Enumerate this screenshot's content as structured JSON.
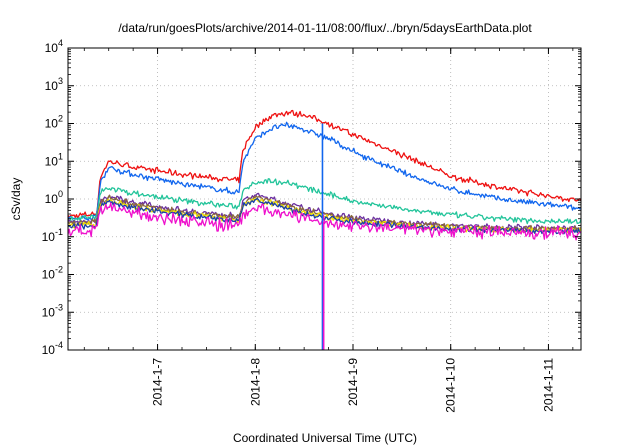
{
  "chart_data": {
    "type": "line",
    "title": "/data/run/goesPlots/archive/2014-01-11/08:00/flux/../bryn/5daysEarthData.plot",
    "xlabel": "Coordinated Universal Time (UTC)",
    "ylabel": "cSv/day",
    "y_scale": "log",
    "ylim": [
      0.0001,
      10000
    ],
    "xlim": [
      "2014-01-06 02:00",
      "2014-01-11 08:00"
    ],
    "grid": true,
    "legend": "none",
    "y_ticks": [
      {
        "base": "10",
        "exp": "-4",
        "value": 0.0001
      },
      {
        "base": "10",
        "exp": "-3",
        "value": 0.001
      },
      {
        "base": "10",
        "exp": "-2",
        "value": 0.01
      },
      {
        "base": "10",
        "exp": "-1",
        "value": 0.1
      },
      {
        "base": "10",
        "exp": "0",
        "value": 1
      },
      {
        "base": "10",
        "exp": "1",
        "value": 10
      },
      {
        "base": "10",
        "exp": "2",
        "value": 100
      },
      {
        "base": "10",
        "exp": "3",
        "value": 1000
      },
      {
        "base": "10",
        "exp": "4",
        "value": 10000
      }
    ],
    "x_ticks": [
      {
        "label": "2014-1-7",
        "value": "2014-01-07 00:00"
      },
      {
        "label": "2014-1-8",
        "value": "2014-01-08 00:00"
      },
      {
        "label": "2014-1-9",
        "value": "2014-01-09 00:00"
      },
      {
        "label": "2014-1-10",
        "value": "2014-01-10 00:00"
      },
      {
        "label": "2014-1-11",
        "value": "2014-01-11 00:00"
      }
    ],
    "series": [
      {
        "color": "#ee1111",
        "x": [
          "2014-01-06 02:00",
          "2014-01-06 09:00",
          "2014-01-06 10:00",
          "2014-01-06 12:00",
          "2014-01-06 18:00",
          "2014-01-07 06:00",
          "2014-01-07 18:00",
          "2014-01-07 20:00",
          "2014-01-07 21:00",
          "2014-01-08 00:00",
          "2014-01-08 04:00",
          "2014-01-08 08:00",
          "2014-01-08 12:00",
          "2014-01-08 18:00",
          "2014-01-09 00:00",
          "2014-01-09 12:00",
          "2014-01-10 00:00",
          "2014-01-10 12:00",
          "2014-01-11 00:00",
          "2014-01-11 08:00"
        ],
        "y": [
          0.35,
          0.4,
          4,
          10,
          7,
          4.5,
          3.2,
          3,
          20,
          80,
          160,
          200,
          170,
          100,
          50,
          15,
          4,
          2,
          1.2,
          0.9
        ]
      },
      {
        "color": "#1166ee",
        "x": [
          "2014-01-06 02:00",
          "2014-01-06 09:00",
          "2014-01-06 10:00",
          "2014-01-06 12:00",
          "2014-01-06 18:00",
          "2014-01-07 06:00",
          "2014-01-07 18:00",
          "2014-01-07 20:00",
          "2014-01-07 21:00",
          "2014-01-08 00:00",
          "2014-01-08 04:00",
          "2014-01-08 08:00",
          "2014-01-08 12:00",
          "2014-01-08 18:00",
          "2014-01-09 00:00",
          "2014-01-09 12:00",
          "2014-01-10 00:00",
          "2014-01-10 12:00",
          "2014-01-11 00:00",
          "2014-01-11 08:00"
        ],
        "y": [
          0.3,
          0.32,
          3,
          7,
          4.5,
          2.5,
          1.6,
          1.5,
          10,
          40,
          75,
          90,
          70,
          40,
          18,
          5,
          1.8,
          1,
          0.7,
          0.55
        ]
      },
      {
        "color": "#22c49a",
        "x": [
          "2014-01-06 02:00",
          "2014-01-06 09:00",
          "2014-01-06 10:00",
          "2014-01-06 12:00",
          "2014-01-06 18:00",
          "2014-01-07 06:00",
          "2014-01-07 18:00",
          "2014-01-07 20:00",
          "2014-01-07 21:00",
          "2014-01-08 00:00",
          "2014-01-08 04:00",
          "2014-01-08 08:00",
          "2014-01-08 12:00",
          "2014-01-08 18:00",
          "2014-01-09 00:00",
          "2014-01-09 12:00",
          "2014-01-10 00:00",
          "2014-01-10 12:00",
          "2014-01-11 00:00",
          "2014-01-11 08:00"
        ],
        "y": [
          0.3,
          0.32,
          1.5,
          2,
          1.4,
          0.9,
          0.65,
          0.6,
          1.8,
          2.8,
          3,
          2.8,
          2,
          1.3,
          0.9,
          0.55,
          0.38,
          0.3,
          0.26,
          0.25
        ]
      },
      {
        "color": "#6b2fa0",
        "x": [
          "2014-01-06 02:00",
          "2014-01-06 09:00",
          "2014-01-06 10:00",
          "2014-01-06 12:00",
          "2014-01-06 18:00",
          "2014-01-07 06:00",
          "2014-01-07 18:00",
          "2014-01-07 20:00",
          "2014-01-07 21:00",
          "2014-01-08 00:00",
          "2014-01-08 04:00",
          "2014-01-08 08:00",
          "2014-01-08 12:00",
          "2014-01-08 18:00",
          "2014-01-09 00:00",
          "2014-01-09 12:00",
          "2014-01-10 00:00",
          "2014-01-10 12:00",
          "2014-01-11 00:00",
          "2014-01-11 08:00"
        ],
        "y": [
          0.25,
          0.26,
          0.9,
          1.2,
          0.8,
          0.5,
          0.36,
          0.34,
          0.9,
          1.3,
          1.0,
          0.75,
          0.55,
          0.42,
          0.32,
          0.24,
          0.2,
          0.18,
          0.17,
          0.17
        ]
      },
      {
        "color": "#8a6a3c",
        "x": [
          "2014-01-06 02:00",
          "2014-01-06 09:00",
          "2014-01-06 10:00",
          "2014-01-06 12:00",
          "2014-01-06 18:00",
          "2014-01-07 06:00",
          "2014-01-07 18:00",
          "2014-01-07 20:00",
          "2014-01-07 21:00",
          "2014-01-08 00:00",
          "2014-01-08 04:00",
          "2014-01-08 08:00",
          "2014-01-08 12:00",
          "2014-01-08 18:00",
          "2014-01-09 00:00",
          "2014-01-09 12:00",
          "2014-01-10 00:00",
          "2014-01-10 12:00",
          "2014-01-11 00:00",
          "2014-01-11 08:00"
        ],
        "y": [
          0.23,
          0.24,
          0.8,
          1.05,
          0.72,
          0.45,
          0.33,
          0.31,
          0.8,
          1.15,
          0.9,
          0.68,
          0.5,
          0.38,
          0.3,
          0.22,
          0.19,
          0.17,
          0.16,
          0.16
        ]
      },
      {
        "color": "#f0e000",
        "x": [
          "2014-01-06 02:00",
          "2014-01-06 09:00",
          "2014-01-06 10:00",
          "2014-01-06 12:00",
          "2014-01-06 18:00",
          "2014-01-07 06:00",
          "2014-01-07 18:00",
          "2014-01-07 20:00",
          "2014-01-07 21:00",
          "2014-01-08 00:00",
          "2014-01-08 04:00",
          "2014-01-08 08:00",
          "2014-01-08 12:00",
          "2014-01-08 18:00",
          "2014-01-09 00:00",
          "2014-01-09 12:00",
          "2014-01-10 00:00",
          "2014-01-10 12:00",
          "2014-01-11 00:00",
          "2014-01-11 08:00"
        ],
        "y": [
          0.2,
          0.21,
          0.7,
          0.9,
          0.62,
          0.4,
          0.29,
          0.27,
          0.7,
          1.0,
          0.78,
          0.58,
          0.43,
          0.33,
          0.26,
          0.2,
          0.17,
          0.15,
          0.15,
          0.15
        ]
      },
      {
        "color": "#1a3fa8",
        "x": [
          "2014-01-06 02:00",
          "2014-01-06 09:00",
          "2014-01-06 10:00",
          "2014-01-06 12:00",
          "2014-01-06 18:00",
          "2014-01-07 06:00",
          "2014-01-07 18:00",
          "2014-01-07 20:00",
          "2014-01-07 21:00",
          "2014-01-08 00:00",
          "2014-01-08 04:00",
          "2014-01-08 08:00",
          "2014-01-08 12:00",
          "2014-01-08 18:00",
          "2014-01-09 00:00",
          "2014-01-09 12:00",
          "2014-01-10 00:00",
          "2014-01-10 12:00",
          "2014-01-11 00:00",
          "2014-01-11 08:00"
        ],
        "y": [
          0.19,
          0.2,
          0.65,
          0.85,
          0.58,
          0.38,
          0.27,
          0.26,
          0.65,
          0.95,
          0.74,
          0.55,
          0.41,
          0.31,
          0.25,
          0.19,
          0.16,
          0.15,
          0.14,
          0.14
        ]
      },
      {
        "color": "#ee11cc",
        "x": [
          "2014-01-06 02:00",
          "2014-01-06 09:00",
          "2014-01-06 10:00",
          "2014-01-06 12:00",
          "2014-01-06 18:00",
          "2014-01-07 06:00",
          "2014-01-07 18:00",
          "2014-01-07 20:00",
          "2014-01-07 21:00",
          "2014-01-08 00:00",
          "2014-01-08 04:00",
          "2014-01-08 08:00",
          "2014-01-08 12:00",
          "2014-01-08 18:00",
          "2014-01-09 00:00",
          "2014-01-09 12:00",
          "2014-01-10 00:00",
          "2014-01-10 12:00",
          "2014-01-11 00:00",
          "2014-01-11 08:00"
        ],
        "y": [
          0.13,
          0.14,
          0.45,
          0.6,
          0.42,
          0.28,
          0.2,
          0.19,
          0.45,
          0.6,
          0.5,
          0.38,
          0.3,
          0.24,
          0.2,
          0.16,
          0.14,
          0.13,
          0.13,
          0.12
        ]
      }
    ],
    "annotations": [
      {
        "type": "dropout",
        "x": "2014-01-08 16:30",
        "y_from": 100,
        "y_to": 0.0001,
        "colors": [
          "#1166ee",
          "#ee11cc"
        ]
      }
    ]
  }
}
